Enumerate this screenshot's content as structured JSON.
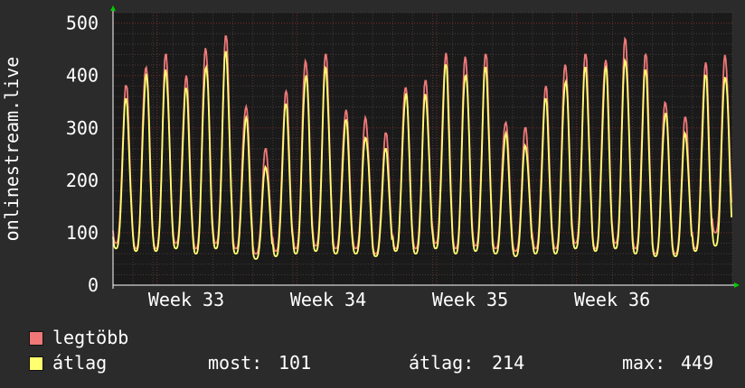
{
  "chart_data": {
    "type": "line",
    "ylabel": "onlinestream.live",
    "ylim": [
      0,
      520
    ],
    "yticks": [
      0,
      100,
      200,
      300,
      400,
      500
    ],
    "xticks": [
      "Week 33",
      "Week 34",
      "Week 35",
      "Week 36"
    ],
    "grid": true,
    "legend_placement": "bottom-left",
    "series": [
      {
        "name": "legtöbb",
        "color": "#f07878",
        "daily_peaks": [
          380,
          430,
          440,
          400,
          460,
          475,
          350,
          260,
          370,
          440,
          440,
          340,
          320,
          290,
          390,
          390,
          445,
          440,
          440,
          320,
          300,
          380,
          430,
          440,
          440,
          470,
          440,
          360,
          320,
          430,
          440
        ],
        "daily_troughs": [
          80,
          70,
          70,
          80,
          70,
          80,
          70,
          60,
          65,
          70,
          75,
          70,
          70,
          60,
          70,
          70,
          80,
          70,
          75,
          70,
          65,
          70,
          70,
          80,
          70,
          80,
          70,
          60,
          60,
          70,
          100
        ]
      },
      {
        "name": "átlag",
        "color": "#ffff70",
        "daily_peaks": [
          355,
          405,
          415,
          375,
          430,
          445,
          320,
          230,
          345,
          410,
          415,
          315,
          290,
          260,
          370,
          365,
          420,
          415,
          415,
          290,
          270,
          355,
          400,
          415,
          415,
          440,
          410,
          335,
          290,
          400,
          410
        ],
        "daily_troughs": [
          70,
          65,
          65,
          70,
          60,
          70,
          60,
          50,
          55,
          60,
          65,
          60,
          60,
          55,
          65,
          60,
          70,
          60,
          65,
          60,
          55,
          60,
          60,
          70,
          65,
          70,
          60,
          55,
          55,
          65,
          75
        ]
      }
    ]
  },
  "legend": {
    "max_label": "legtöbb",
    "avg_label": "átlag",
    "stats": {
      "now_label": "most:",
      "now_value": "101",
      "avg_label": "átlag:",
      "avg_value": "214",
      "max_label": "max:",
      "max_value": "449"
    }
  },
  "colors": {
    "background": "#2b2b2b",
    "plot_background": "#1a1a1a",
    "grid_major": "#7a2a2a",
    "grid_minor": "#4a3a3a",
    "axis": "#ffffff",
    "arrow": "#00cc00"
  }
}
